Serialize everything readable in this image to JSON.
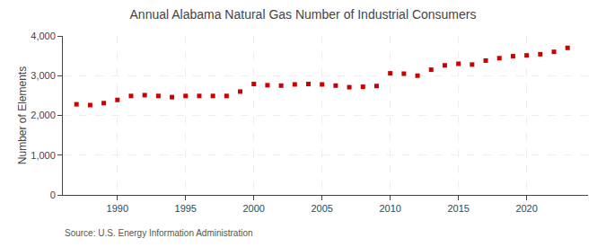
{
  "chart_data": {
    "type": "scatter",
    "title": "Annual Alabama Natural Gas Number of Industrial Consumers",
    "ylabel": "Number of Elements",
    "source": "Source: U.S. Energy Information Administration",
    "x": [
      1987,
      1988,
      1989,
      1990,
      1991,
      1992,
      1993,
      1994,
      1995,
      1996,
      1997,
      1998,
      1999,
      2000,
      2001,
      2002,
      2003,
      2004,
      2005,
      2006,
      2007,
      2008,
      2009,
      2010,
      2011,
      2012,
      2013,
      2014,
      2015,
      2016,
      2017,
      2018,
      2019,
      2020,
      2021,
      2022,
      2023
    ],
    "values": [
      2280,
      2260,
      2310,
      2390,
      2490,
      2510,
      2490,
      2460,
      2490,
      2490,
      2490,
      2490,
      2600,
      2790,
      2760,
      2750,
      2780,
      2790,
      2780,
      2750,
      2710,
      2720,
      2740,
      3060,
      3050,
      3000,
      3150,
      3260,
      3300,
      3280,
      3380,
      3440,
      3490,
      3510,
      3540,
      3600,
      3700
    ],
    "color": "#cc0000",
    "marker": "square",
    "xlim": [
      1986,
      2024.5
    ],
    "ylim": [
      0,
      4000
    ],
    "xticks": [
      1990,
      1995,
      2000,
      2005,
      2010,
      2015,
      2020
    ],
    "yticks": [
      0,
      {
        "value": 1000,
        "label": "1,000"
      },
      {
        "value": 2000,
        "label": "2,000"
      },
      {
        "value": 3000,
        "label": "3,000"
      },
      {
        "value": 4000,
        "label": "4,000"
      }
    ],
    "grid": true
  }
}
